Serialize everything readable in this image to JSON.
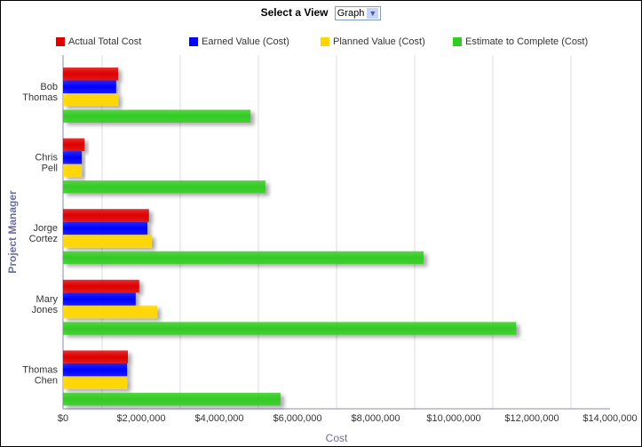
{
  "view_selector": {
    "label": "Select a View",
    "selected": "Graph"
  },
  "chart_data": {
    "type": "bar",
    "orientation": "horizontal",
    "categories": [
      "Bob\nThomas",
      "Chris\nPell",
      "Jorge\nCortez",
      "Mary\nJones",
      "Thomas\nChen"
    ],
    "series": [
      {
        "name": "Actual Total Cost",
        "color": "#e00000",
        "values": [
          1410000,
          550000,
          2200000,
          1950000,
          1660000
        ]
      },
      {
        "name": "Earned Value (Cost)",
        "color": "#0000ff",
        "values": [
          1360000,
          480000,
          2160000,
          1860000,
          1640000
        ]
      },
      {
        "name": "Planned Value (Cost)",
        "color": "#ffd700",
        "values": [
          1410000,
          480000,
          2270000,
          2410000,
          1640000
        ]
      },
      {
        "name": "Estimate to Complete (Cost)",
        "color": "#33cc22",
        "values": [
          4800000,
          5180000,
          9230000,
          11600000,
          5570000
        ]
      }
    ],
    "xlabel": "Cost",
    "ylabel": "Project Manager",
    "xlim": [
      0,
      14000000
    ],
    "xticks": [
      "$0",
      "$2,000,000",
      "$4,000,000",
      "$6,000,000",
      "$8,000,000",
      "$10,000,000",
      "$12,000,000",
      "$14,000,000"
    ],
    "grid": true,
    "legend": "top"
  }
}
